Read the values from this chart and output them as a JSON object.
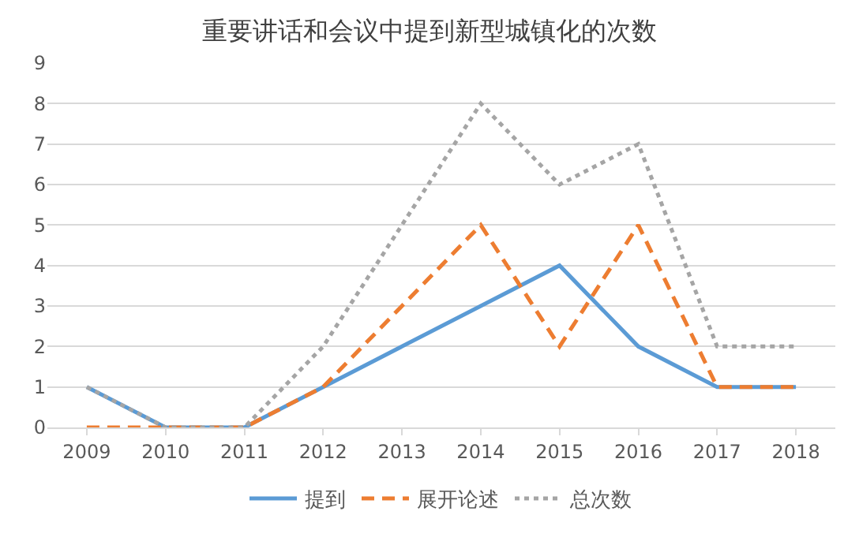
{
  "chart_data": {
    "type": "line",
    "title": "重要讲话和会议中提到新型城镇化的次数",
    "categories": [
      "2009",
      "2010",
      "2011",
      "2012",
      "2013",
      "2014",
      "2015",
      "2016",
      "2017",
      "2018"
    ],
    "series": [
      {
        "name": "提到",
        "color": "#5b9bd5",
        "line_style": "solid",
        "values": [
          1,
          0,
          0,
          1,
          2,
          3,
          4,
          2,
          1,
          1
        ]
      },
      {
        "name": "展开论述",
        "color": "#ed7d31",
        "line_style": "dashed",
        "values": [
          0,
          0,
          0,
          1,
          3,
          5,
          2,
          5,
          1,
          1
        ]
      },
      {
        "name": "总次数",
        "color": "#a5a5a5",
        "line_style": "dotted",
        "values": [
          1,
          0,
          0,
          2,
          5,
          8,
          6,
          7,
          2,
          2
        ]
      }
    ],
    "ylim": [
      0,
      9
    ],
    "yticks": [
      0,
      1,
      2,
      3,
      4,
      5,
      6,
      7,
      8,
      9
    ],
    "grid": "y",
    "legend": "bottom",
    "marker": "none"
  }
}
